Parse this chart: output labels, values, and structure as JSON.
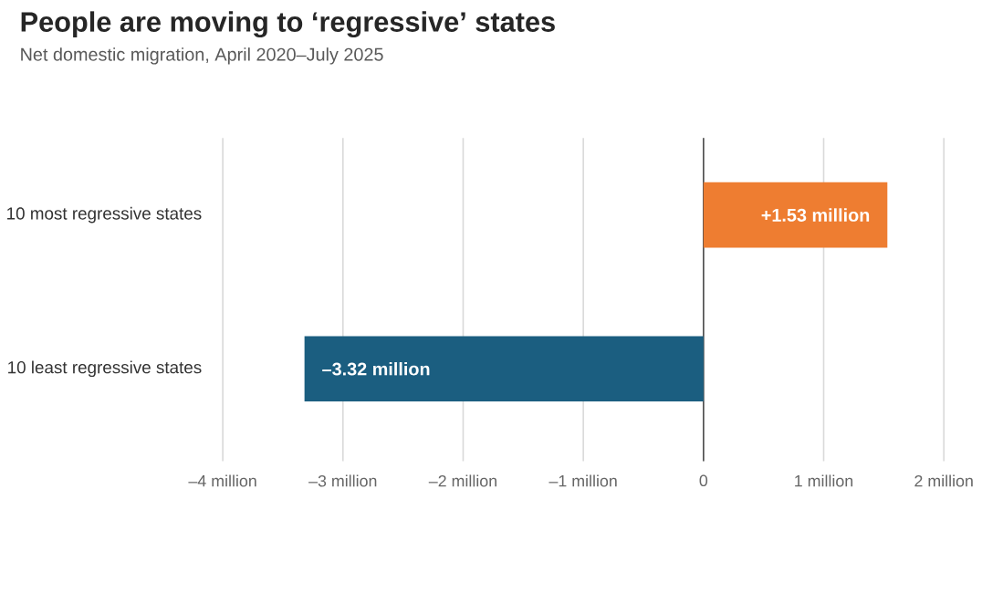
{
  "chart_data": {
    "type": "bar",
    "orientation": "horizontal",
    "title": "People are moving to ‘regressive’ states",
    "subtitle": "Net domestic migration, April 2020–July 2025",
    "categories": [
      "10 most regressive states",
      "10 least regressive states"
    ],
    "values": [
      1.53,
      -3.32
    ],
    "colors": [
      "#ee7d31",
      "#1b5e80"
    ],
    "value_labels": [
      "+1.53 million",
      "–3.32 million"
    ],
    "xlim": [
      -4,
      2
    ],
    "xticks": [
      {
        "value": -4,
        "label": "–4 million"
      },
      {
        "value": -3,
        "label": "–3 million"
      },
      {
        "value": -2,
        "label": "–2 million"
      },
      {
        "value": -1,
        "label": "–1 million"
      },
      0,
      {
        "value": 1,
        "label": "1 million"
      },
      {
        "value": 2,
        "label": "2 million"
      }
    ],
    "grid": "x"
  }
}
